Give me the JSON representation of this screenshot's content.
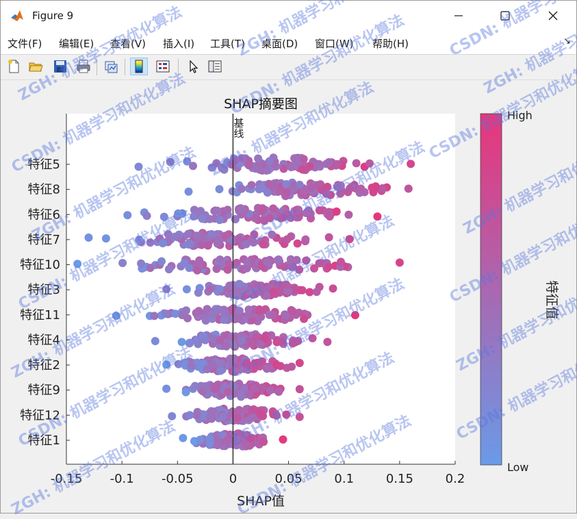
{
  "window": {
    "title": "Figure 9",
    "menu": [
      "文件(F)",
      "编辑(E)",
      "查看(V)",
      "插入(I)",
      "工具(T)",
      "桌面(D)",
      "窗口(W)",
      "帮助(H)"
    ],
    "toolbar_icons": [
      "new-figure-icon",
      "open-file-icon",
      "save-icon",
      "print-icon",
      "link-plot-icon",
      "insert-colorbar-icon",
      "insert-legend-icon",
      "pointer-icon",
      "property-editor-icon"
    ]
  },
  "watermark": {
    "text": "ZGH: 机器学习和优化算法",
    "alt_text": "CSDN: 机器学习和优化算法",
    "color": "#5876de"
  },
  "chart_data": {
    "type": "scatter",
    "subtype": "shap-summary-beeswarm",
    "title": "SHAP摘要图",
    "xlabel": "SHAP值",
    "ylabel": "",
    "xlim": [
      -0.15,
      0.2
    ],
    "x_ticks": [
      "-0.15",
      "-0.1",
      "-0.05",
      "0",
      "0.05",
      "0.1",
      "0.15",
      "0.2"
    ],
    "x_tick_values": [
      -0.15,
      -0.1,
      -0.05,
      0,
      0.05,
      0.1,
      0.15,
      0.2
    ],
    "baseline": {
      "x": 0,
      "label": "基线"
    },
    "grid": false,
    "features": [
      "特征5",
      "特征8",
      "特征6",
      "特征7",
      "特征10",
      "特征3",
      "特征11",
      "特征4",
      "特征2",
      "特征9",
      "特征12",
      "特征1"
    ],
    "feature_ranges": [
      {
        "feature": "特征5",
        "min": -0.085,
        "max": 0.16
      },
      {
        "feature": "特征8",
        "min": -0.04,
        "max": 0.158
      },
      {
        "feature": "特征6",
        "min": -0.095,
        "max": 0.13
      },
      {
        "feature": "特征7",
        "min": -0.13,
        "max": 0.105
      },
      {
        "feature": "特征10",
        "min": -0.14,
        "max": 0.15
      },
      {
        "feature": "特征3",
        "min": -0.06,
        "max": 0.09
      },
      {
        "feature": "特征11",
        "min": -0.105,
        "max": 0.11
      },
      {
        "feature": "特征4",
        "min": -0.07,
        "max": 0.085
      },
      {
        "feature": "特征2",
        "min": -0.06,
        "max": 0.06
      },
      {
        "feature": "特征9",
        "min": -0.06,
        "max": 0.06
      },
      {
        "feature": "特征12",
        "min": -0.055,
        "max": 0.06
      },
      {
        "feature": "特征1",
        "min": -0.045,
        "max": 0.045
      }
    ],
    "colorbar": {
      "label": "特征值",
      "high_label": "High",
      "low_label": "Low",
      "high_color": "#e8357a",
      "low_color": "#6a9ae8"
    }
  }
}
